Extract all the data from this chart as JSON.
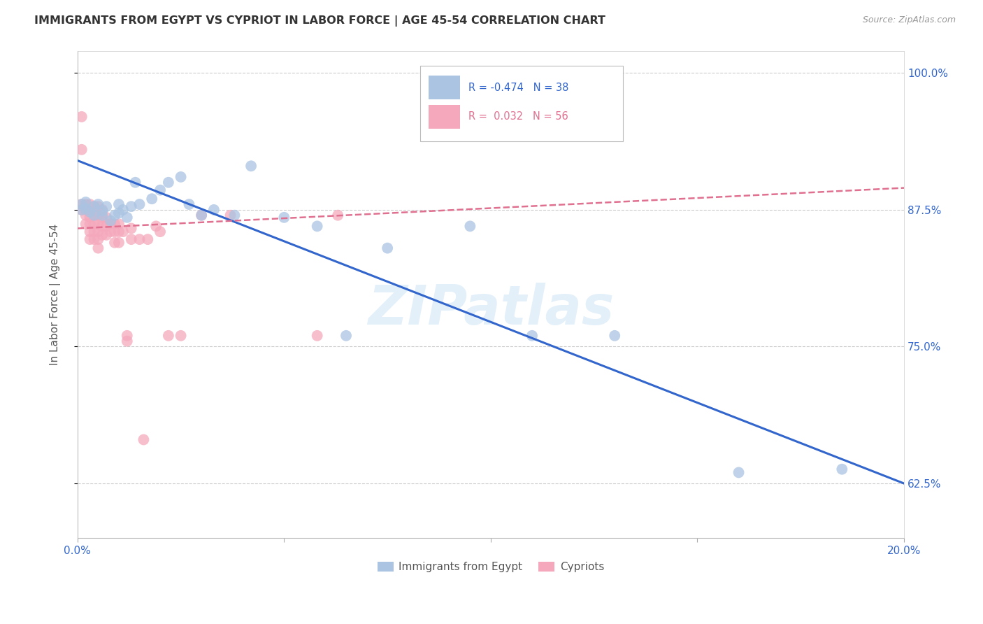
{
  "title": "IMMIGRANTS FROM EGYPT VS CYPRIOT IN LABOR FORCE | AGE 45-54 CORRELATION CHART",
  "source": "Source: ZipAtlas.com",
  "ylabel": "In Labor Force | Age 45-54",
  "x_min": 0.0,
  "x_max": 0.2,
  "y_min": 0.575,
  "y_max": 1.02,
  "y_ticks": [
    0.625,
    0.75,
    0.875,
    1.0
  ],
  "y_tick_labels": [
    "62.5%",
    "75.0%",
    "87.5%",
    "100.0%"
  ],
  "x_ticks": [
    0.0,
    0.05,
    0.1,
    0.15,
    0.2
  ],
  "x_tick_labels": [
    "0.0%",
    "",
    "",
    "",
    "20.0%"
  ],
  "legend_r_egypt": "-0.474",
  "legend_n_egypt": "38",
  "legend_r_cypriot": "0.032",
  "legend_n_cypriot": "56",
  "color_egypt": "#aac4e2",
  "color_cypriot": "#f5a8bc",
  "trendline_egypt_color": "#3366cc",
  "trendline_cypriot_color": "#e07090",
  "watermark": "ZIPatlas",
  "egypt_x": [
    0.001,
    0.001,
    0.002,
    0.002,
    0.003,
    0.004,
    0.004,
    0.005,
    0.006,
    0.006,
    0.007,
    0.008,
    0.009,
    0.01,
    0.01,
    0.011,
    0.012,
    0.013,
    0.014,
    0.015,
    0.018,
    0.02,
    0.022,
    0.025,
    0.027,
    0.03,
    0.033,
    0.038,
    0.042,
    0.05,
    0.058,
    0.065,
    0.075,
    0.095,
    0.11,
    0.13,
    0.16,
    0.185
  ],
  "egypt_y": [
    0.88,
    0.875,
    0.882,
    0.876,
    0.873,
    0.878,
    0.87,
    0.88,
    0.874,
    0.87,
    0.878,
    0.865,
    0.87,
    0.872,
    0.88,
    0.875,
    0.868,
    0.878,
    0.9,
    0.88,
    0.885,
    0.893,
    0.9,
    0.905,
    0.88,
    0.87,
    0.875,
    0.87,
    0.915,
    0.868,
    0.86,
    0.76,
    0.84,
    0.86,
    0.76,
    0.76,
    0.635,
    0.638
  ],
  "cypriot_x": [
    0.001,
    0.001,
    0.001,
    0.001,
    0.002,
    0.002,
    0.002,
    0.002,
    0.003,
    0.003,
    0.003,
    0.003,
    0.003,
    0.003,
    0.004,
    0.004,
    0.004,
    0.004,
    0.004,
    0.005,
    0.005,
    0.005,
    0.005,
    0.005,
    0.005,
    0.006,
    0.006,
    0.006,
    0.006,
    0.007,
    0.007,
    0.007,
    0.008,
    0.008,
    0.009,
    0.009,
    0.009,
    0.01,
    0.01,
    0.01,
    0.011,
    0.012,
    0.012,
    0.013,
    0.013,
    0.015,
    0.016,
    0.017,
    0.019,
    0.02,
    0.022,
    0.025,
    0.03,
    0.037,
    0.058,
    0.063
  ],
  "cypriot_y": [
    0.88,
    0.875,
    0.93,
    0.96,
    0.88,
    0.875,
    0.87,
    0.862,
    0.88,
    0.873,
    0.868,
    0.862,
    0.855,
    0.848,
    0.878,
    0.87,
    0.862,
    0.855,
    0.848,
    0.878,
    0.87,
    0.862,
    0.855,
    0.848,
    0.84,
    0.875,
    0.868,
    0.86,
    0.852,
    0.868,
    0.86,
    0.852,
    0.862,
    0.855,
    0.862,
    0.855,
    0.845,
    0.862,
    0.855,
    0.845,
    0.855,
    0.76,
    0.755,
    0.858,
    0.848,
    0.848,
    0.665,
    0.848,
    0.86,
    0.855,
    0.76,
    0.76,
    0.87,
    0.87,
    0.76,
    0.87
  ],
  "trendline_egypt_x0": 0.0,
  "trendline_egypt_y0": 0.92,
  "trendline_egypt_x1": 0.2,
  "trendline_egypt_y1": 0.625,
  "trendline_cypriot_x0": 0.0,
  "trendline_cypriot_y0": 0.858,
  "trendline_cypriot_x1": 0.2,
  "trendline_cypriot_y1": 0.895
}
